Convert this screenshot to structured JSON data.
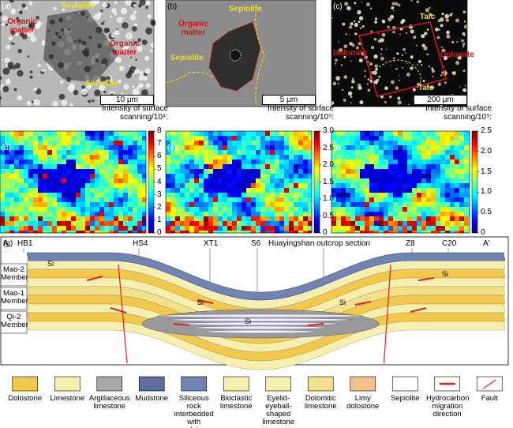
{
  "panels": [
    {
      "label": "(a)",
      "annotations": [
        {
          "text": "Organic matter",
          "color": "red"
        },
        {
          "text": "Sepiolite",
          "color": "yellow"
        },
        {
          "text": "Organic matter",
          "color": "red"
        },
        {
          "text": "Sepiolite",
          "color": "yellow"
        }
      ],
      "scale_bar": "10 μm"
    },
    {
      "label": "(b)",
      "annotations": [
        {
          "text": "Sepiolite",
          "color": "yellow"
        },
        {
          "text": "Organic matter",
          "color": "red"
        },
        {
          "text": "Sepiolite",
          "color": "yellow"
        }
      ],
      "scale_bar": "5 μm"
    },
    {
      "label": "(c)",
      "annotations": [
        {
          "text": "Talc",
          "color": "yellow"
        },
        {
          "text": "Dolomite",
          "color": "red"
        },
        {
          "text": "Dolomite",
          "color": "red"
        },
        {
          "text": "Talc",
          "color": "yellow"
        }
      ],
      "scale_bar": "200 μm"
    }
  ],
  "maps": [
    {
      "label": "(d)",
      "colorbar_title": "Intensity of surface scanning/10⁴:",
      "lim": [
        0,
        8
      ],
      "ticks": [
        0,
        1,
        2,
        3,
        4,
        5,
        6,
        7,
        8
      ]
    },
    {
      "label": "(e)",
      "colorbar_title": "Intensity of surface scanning/10⁵:",
      "lim": [
        0,
        3
      ],
      "ticks": [
        0,
        0.5,
        {
          "value": 1,
          "label": "1.0"
        },
        1.5,
        {
          "value": 2,
          "label": "2.0"
        },
        2.5,
        {
          "value": 3,
          "label": "3.0"
        }
      ]
    },
    {
      "label": "(f)",
      "colorbar_title": "Intensity of surface scanning/10⁵:",
      "lim": [
        0,
        2.5
      ],
      "ticks": [
        0,
        0.5,
        {
          "value": 1,
          "label": "1.0"
        },
        1.5,
        {
          "value": 2,
          "label": "2.0"
        },
        2.5
      ]
    }
  ],
  "section": {
    "label": "(g)",
    "wells": [
      "A",
      "HB1",
      "HS4",
      "XT1",
      "S6",
      "Huayingshan outcrop section",
      "Z8",
      "C20",
      "A'"
    ],
    "members": [
      "Mao-2 Member",
      "Mao-1 Member",
      "Qi-2 Member"
    ],
    "si": "Si"
  },
  "legend": [
    {
      "name": "Dolostone",
      "color": "#f2c94c"
    },
    {
      "name": "Limestone",
      "color": "#f7efb0"
    },
    {
      "name": "Argillaceous limestone",
      "color": "#a9a9a9"
    },
    {
      "name": "Mudstone",
      "color": "#5d6f9a"
    },
    {
      "name": "Siliceous rock interbedded with mudstone",
      "color": "#6f84b3"
    },
    {
      "name": "Bioclastic limestone",
      "color": "#f7efb0"
    },
    {
      "name": "Eyelid-eyeball-shaped limestone",
      "color": "#f7efb0"
    },
    {
      "name": "Dolomitic limestone",
      "color": "#f3e08a"
    },
    {
      "name": "Limy dolostone",
      "color": "#f2c08a"
    },
    {
      "name": "Sepiolite",
      "color": "#ffffff"
    },
    {
      "name": "Hydrocarbon migration direction",
      "color": "#e02020"
    },
    {
      "name": "Fault",
      "color": "#e02020"
    }
  ]
}
